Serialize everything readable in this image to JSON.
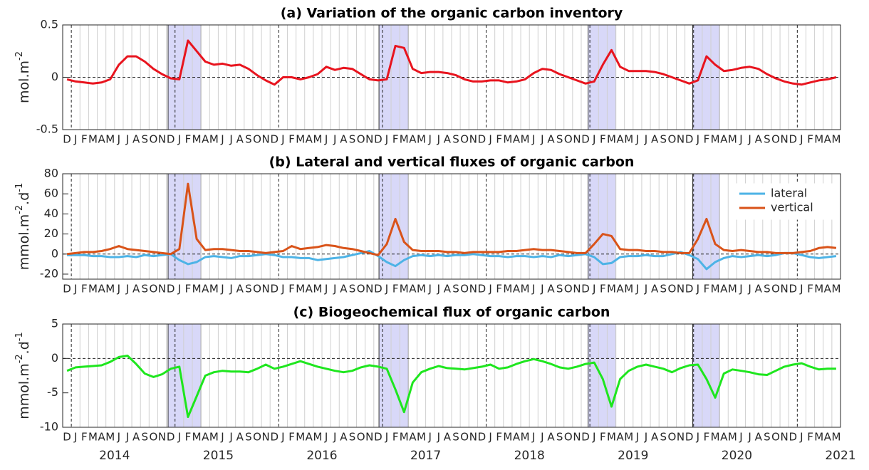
{
  "chart_data": [
    {
      "type": "line",
      "title": "(a) Variation of the organic carbon inventory",
      "ylabel": [
        "mol.m",
        "-2"
      ],
      "categories": [
        "D",
        "J",
        "F",
        "M",
        "A",
        "M",
        "J",
        "J",
        "A",
        "S",
        "O",
        "N",
        "D",
        "J",
        "F",
        "M",
        "A",
        "M",
        "J",
        "J",
        "A",
        "S",
        "O",
        "N",
        "D",
        "J",
        "F",
        "M",
        "A",
        "M",
        "J",
        "J",
        "A",
        "S",
        "O",
        "N",
        "D",
        "J",
        "F",
        "M",
        "A",
        "M",
        "J",
        "J",
        "A",
        "S",
        "O",
        "N",
        "D",
        "J",
        "F",
        "M",
        "A",
        "M",
        "J",
        "J",
        "A",
        "S",
        "O",
        "N",
        "D",
        "J",
        "F",
        "M",
        "A",
        "M",
        "J",
        "J",
        "A",
        "S",
        "O",
        "N",
        "D",
        "J",
        "F",
        "M",
        "A",
        "M",
        "J",
        "J",
        "A",
        "S",
        "O",
        "N",
        "D",
        "J",
        "F",
        "M",
        "A",
        "M"
      ],
      "ylim": [
        -0.5,
        0.5
      ],
      "yticks": [
        -0.5,
        0,
        0.5
      ],
      "grid": true,
      "highlight_spans": [
        [
          12.2,
          16
        ],
        [
          36.6,
          40
        ],
        [
          60.8,
          64
        ],
        [
          72.9,
          76
        ]
      ],
      "series": [
        {
          "name": "inventory",
          "color": "#e8141e",
          "values": [
            -0.02,
            -0.04,
            -0.05,
            -0.06,
            -0.05,
            -0.02,
            0.12,
            0.2,
            0.2,
            0.15,
            0.08,
            0.03,
            -0.01,
            -0.02,
            0.35,
            0.25,
            0.15,
            0.12,
            0.13,
            0.11,
            0.12,
            0.08,
            0.02,
            -0.03,
            -0.07,
            0.0,
            0.0,
            -0.02,
            0.0,
            0.03,
            0.1,
            0.07,
            0.09,
            0.08,
            0.03,
            -0.02,
            -0.03,
            -0.02,
            0.3,
            0.28,
            0.08,
            0.04,
            0.05,
            0.05,
            0.04,
            0.02,
            -0.02,
            -0.04,
            -0.04,
            -0.03,
            -0.03,
            -0.05,
            -0.04,
            -0.02,
            0.04,
            0.08,
            0.07,
            0.03,
            0.0,
            -0.03,
            -0.06,
            -0.04,
            0.12,
            0.26,
            0.1,
            0.06,
            0.06,
            0.06,
            0.05,
            0.03,
            0.0,
            -0.03,
            -0.06,
            -0.03,
            0.2,
            0.12,
            0.06,
            0.07,
            0.09,
            0.1,
            0.08,
            0.03,
            -0.01,
            -0.04,
            -0.06,
            -0.07,
            -0.05,
            -0.03,
            -0.02,
            0.0
          ]
        }
      ]
    },
    {
      "type": "line",
      "title": "(b) Lateral and vertical fluxes of organic carbon",
      "ylabel": [
        "mmol.m",
        "-2",
        ".d",
        "-1"
      ],
      "categories": [
        "D",
        "J",
        "F",
        "M",
        "A",
        "M",
        "J",
        "J",
        "A",
        "S",
        "O",
        "N",
        "D",
        "J",
        "F",
        "M",
        "A",
        "M",
        "J",
        "J",
        "A",
        "S",
        "O",
        "N",
        "D",
        "J",
        "F",
        "M",
        "A",
        "M",
        "J",
        "J",
        "A",
        "S",
        "O",
        "N",
        "D",
        "J",
        "F",
        "M",
        "A",
        "M",
        "J",
        "J",
        "A",
        "S",
        "O",
        "N",
        "D",
        "J",
        "F",
        "M",
        "A",
        "M",
        "J",
        "J",
        "A",
        "S",
        "O",
        "N",
        "D",
        "J",
        "F",
        "M",
        "A",
        "M",
        "J",
        "J",
        "A",
        "S",
        "O",
        "N",
        "D",
        "J",
        "F",
        "M",
        "A",
        "M",
        "J",
        "J",
        "A",
        "S",
        "O",
        "N",
        "D",
        "J",
        "F",
        "M",
        "A",
        "M"
      ],
      "ylim": [
        -25,
        80
      ],
      "yticks": [
        -20,
        0,
        20,
        40,
        60,
        80
      ],
      "grid": true,
      "legend": "upper right",
      "highlight_spans": [
        [
          12.2,
          16
        ],
        [
          36.6,
          40
        ],
        [
          60.8,
          64
        ],
        [
          72.9,
          76
        ]
      ],
      "series": [
        {
          "name": "lateral",
          "color": "#4db3e6",
          "values": [
            -1,
            -1,
            -1,
            -2,
            -2,
            -3,
            -3,
            -2,
            -3,
            -1,
            -2,
            -1,
            0,
            -6,
            -10,
            -8,
            -3,
            -2,
            -3,
            -4,
            -2,
            -2,
            -1,
            0,
            -1,
            -3,
            -3,
            -4,
            -4,
            -6,
            -5,
            -4,
            -3,
            -1,
            1,
            3,
            -2,
            -8,
            -12,
            -6,
            -2,
            -1,
            -2,
            -1,
            -2,
            -1,
            -1,
            0,
            -1,
            -2,
            -2,
            -3,
            -2,
            -2,
            -3,
            -2,
            -3,
            -1,
            -2,
            -1,
            0,
            -3,
            -10,
            -9,
            -3,
            -2,
            -2,
            -1,
            -2,
            -2,
            0,
            2,
            -1,
            -5,
            -15,
            -8,
            -4,
            -2,
            -3,
            -2,
            -1,
            -2,
            -1,
            1,
            1,
            -1,
            -3,
            -4,
            -3,
            -2
          ]
        },
        {
          "name": "vertical",
          "color": "#d95319",
          "values": [
            0,
            1,
            2,
            2,
            3,
            5,
            8,
            5,
            4,
            3,
            2,
            1,
            0,
            5,
            70,
            15,
            4,
            5,
            5,
            4,
            3,
            3,
            2,
            1,
            2,
            3,
            8,
            5,
            6,
            7,
            9,
            8,
            6,
            5,
            3,
            1,
            -1,
            10,
            35,
            12,
            4,
            3,
            3,
            3,
            2,
            2,
            1,
            2,
            2,
            2,
            2,
            3,
            3,
            4,
            5,
            4,
            4,
            3,
            2,
            1,
            1,
            10,
            20,
            18,
            5,
            4,
            4,
            3,
            3,
            2,
            2,
            1,
            1,
            15,
            35,
            10,
            4,
            3,
            4,
            3,
            2,
            2,
            1,
            1,
            1,
            2,
            3,
            6,
            7,
            6
          ]
        }
      ]
    },
    {
      "type": "line",
      "title": "(c) Biogeochemical flux of organic carbon",
      "ylabel": [
        "mmol.m",
        "-2",
        ".d",
        "-1"
      ],
      "categories": [
        "D",
        "J",
        "F",
        "M",
        "A",
        "M",
        "J",
        "J",
        "A",
        "S",
        "O",
        "N",
        "D",
        "J",
        "F",
        "M",
        "A",
        "M",
        "J",
        "J",
        "A",
        "S",
        "O",
        "N",
        "D",
        "J",
        "F",
        "M",
        "A",
        "M",
        "J",
        "J",
        "A",
        "S",
        "O",
        "N",
        "D",
        "J",
        "F",
        "M",
        "A",
        "M",
        "J",
        "J",
        "A",
        "S",
        "O",
        "N",
        "D",
        "J",
        "F",
        "M",
        "A",
        "M",
        "J",
        "J",
        "A",
        "S",
        "O",
        "N",
        "D",
        "J",
        "F",
        "M",
        "A",
        "M",
        "J",
        "J",
        "A",
        "S",
        "O",
        "N",
        "D",
        "J",
        "F",
        "M",
        "A",
        "M",
        "J",
        "J",
        "A",
        "S",
        "O",
        "N",
        "D",
        "J",
        "F",
        "M",
        "A",
        "M"
      ],
      "ylim": [
        -10,
        5
      ],
      "yticks": [
        -10,
        -5,
        0,
        5
      ],
      "grid": true,
      "highlight_spans": [
        [
          12.2,
          16
        ],
        [
          36.6,
          40
        ],
        [
          60.8,
          64
        ],
        [
          72.9,
          76
        ]
      ],
      "year_labels": [
        "2014",
        "2015",
        "2016",
        "2017",
        "2018",
        "2019",
        "2020",
        "2021"
      ],
      "series": [
        {
          "name": "biogeochemical",
          "color": "#1ee61e",
          "values": [
            -1.8,
            -1.3,
            -1.2,
            -1.1,
            -1.0,
            -0.5,
            0.2,
            0.4,
            -0.8,
            -2.2,
            -2.7,
            -2.3,
            -1.5,
            -1.2,
            -8.5,
            -5.5,
            -2.5,
            -2.0,
            -1.8,
            -1.9,
            -1.9,
            -2.0,
            -1.5,
            -0.9,
            -1.5,
            -1.2,
            -0.8,
            -0.4,
            -0.8,
            -1.2,
            -1.5,
            -1.8,
            -2.0,
            -1.8,
            -1.3,
            -1.0,
            -1.2,
            -1.5,
            -4.5,
            -7.8,
            -3.5,
            -2.0,
            -1.5,
            -1.1,
            -1.4,
            -1.5,
            -1.6,
            -1.4,
            -1.2,
            -0.9,
            -1.5,
            -1.3,
            -0.8,
            -0.4,
            -0.1,
            -0.4,
            -0.8,
            -1.3,
            -1.5,
            -1.2,
            -0.8,
            -0.6,
            -3.0,
            -7.0,
            -3.0,
            -1.8,
            -1.2,
            -0.9,
            -1.2,
            -1.5,
            -2.0,
            -1.4,
            -1.0,
            -0.9,
            -3.0,
            -5.7,
            -2.2,
            -1.6,
            -1.8,
            -2.0,
            -2.3,
            -2.4,
            -1.8,
            -1.2,
            -0.9,
            -0.7,
            -1.2,
            -1.6,
            -1.5,
            -1.5
          ]
        }
      ]
    }
  ]
}
